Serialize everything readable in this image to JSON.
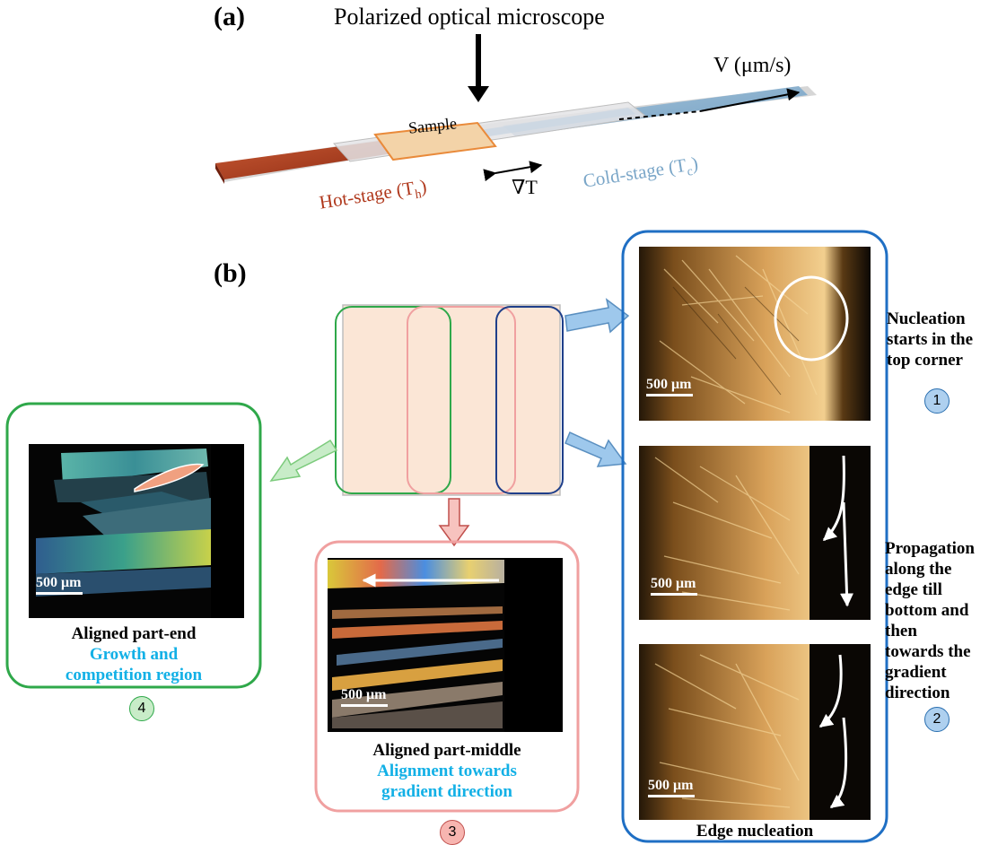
{
  "panel_a": {
    "label": "(a)",
    "microscope": "Polarized optical microscope",
    "velocity": "V (μm/s)",
    "sample": "Sample",
    "gradient": "∇T",
    "hot_stage": "Hot-stage (T",
    "hot_sub": "h",
    "cold_stage": "Cold-stage (T",
    "cold_sub": "c",
    "close_paren": ")"
  },
  "panel_b": {
    "label": "(b)",
    "scale": "500 μm",
    "edge": {
      "caption": "Edge nucleation",
      "note1": [
        "Nucleation",
        "starts in the",
        "top corner"
      ],
      "num1": "1",
      "note2": [
        "Propagation",
        "along the",
        "edge till",
        "bottom and",
        "then",
        "towards the",
        "gradient",
        "direction"
      ],
      "num2": "2"
    },
    "middle": {
      "title": "Aligned part-middle",
      "sub1": "Alignment towards",
      "sub2": "gradient direction",
      "num": "3"
    },
    "end": {
      "title": "Aligned part-end",
      "sub1": "Growth and",
      "sub2": "competition region",
      "num": "4"
    }
  },
  "colors": {
    "blue_box": "#1f6fc4",
    "green_box": "#2fa84a",
    "pink_box": "#f0a0a0",
    "hot": "#b0381c",
    "cold": "#7aa6c8"
  }
}
